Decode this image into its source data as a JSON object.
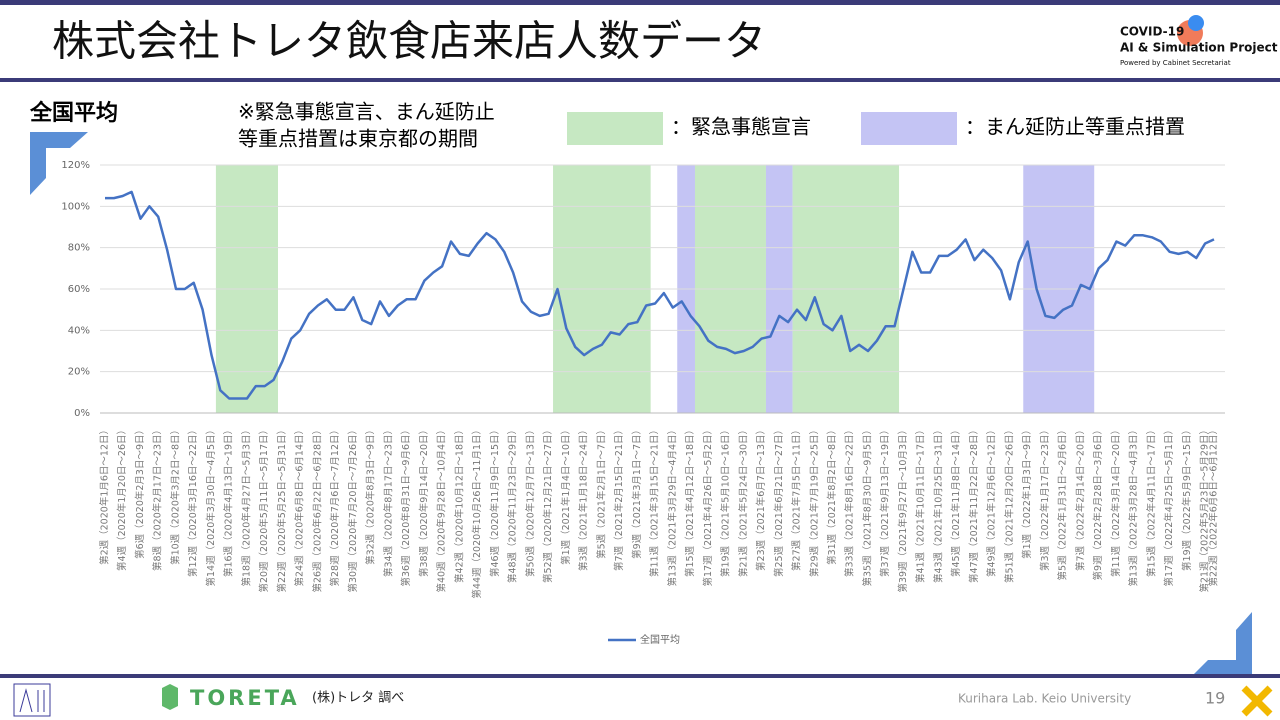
{
  "header": {
    "title": "株式会社トレタ飲食店来店人数データ",
    "logo": {
      "line1": "COVID-19",
      "line2": "AI & Simulation Project",
      "line3": "Powered by Cabinet Secretariat"
    }
  },
  "section_label": "全国平均",
  "note": [
    "※緊急事態宣言、まん延防止",
    "等重点措置は東京都の期間"
  ],
  "chart_data": {
    "type": "line",
    "period_legend": [
      {
        "name": "：緊急事態宣言",
        "color": "#c6e8c2"
      },
      {
        "name": "：まん延防止等重点措置",
        "color": "#c4c4f4"
      }
    ],
    "periods": [
      {
        "kind": 0,
        "start": 13,
        "end": 19
      },
      {
        "kind": 0,
        "start": 51,
        "end": 61
      },
      {
        "kind": 1,
        "start": 65,
        "end": 66
      },
      {
        "kind": 0,
        "start": 67,
        "end": 74
      },
      {
        "kind": 1,
        "start": 75,
        "end": 77
      },
      {
        "kind": 0,
        "start": 78,
        "end": 89
      },
      {
        "kind": 1,
        "start": 104,
        "end": 111
      }
    ],
    "categories": [
      "第2週（2020年1月6日～12日）",
      null,
      "第4週（2020年1月20日～26日）",
      null,
      "第6週（2020年2月3日～9日）",
      null,
      "第8週（2020年2月17日～23日）",
      null,
      "第10週（2020年3月2日～8日）",
      null,
      "第12週（2020年3月16日～22日）",
      null,
      "第14週（2020年3月30日～4月5日）",
      null,
      "第16週（2020年4月13日～19日）",
      null,
      "第18週（2020年4月27日～5月3日）",
      null,
      "第20週（2020年5月11日～5月17日）",
      null,
      "第22週（2020年5月25日～5月31日）",
      null,
      "第24週（2020年6月8日～6月14日）",
      null,
      "第26週（2020年6月22日～6月28日）",
      null,
      "第28週（2020年7月6日～7月12日）",
      null,
      "第30週（2020年7月20日～7月26日）",
      null,
      "第32週（2020年8月3日～9日）",
      null,
      "第34週（2020年8月17日～23日）",
      null,
      "第36週（2020年8月31日～9月6日）",
      null,
      "第38週（2020年9月14日～20日）",
      null,
      "第40週（2020年9月28日～10月4日）",
      null,
      "第42週（2020年10月12日～18日）",
      null,
      "第44週（2020年10月26日～11月1日）",
      null,
      "第46週（2020年11月9日～15日）",
      null,
      "第48週（2020年11月23日～29日）",
      null,
      "第50週（2020年12月7日～13日）",
      null,
      "第52週（2020年12月21日～27日）",
      null,
      "第1週（2021年1月4日～10日）",
      null,
      "第3週（2021年1月18日～24日）",
      null,
      "第5週（2021年2月1日～7日）",
      null,
      "第7週（2021年2月15日～21日）",
      null,
      "第9週（2021年3月1日～7日）",
      null,
      "第11週（2021年3月15日～21日）",
      null,
      "第13週（2021年3月29日～4月4日）",
      null,
      "第15週（2021年4月12日～18日）",
      null,
      "第17週（2021年4月26日～5月2日）",
      null,
      "第19週（2021年5月10日～16日）",
      null,
      "第21週（2021年5月24日～30日）",
      null,
      "第23週（2021年6月7日～13日）",
      null,
      "第25週（2021年6月21日～27日）",
      null,
      "第27週（2021年7月5日～11日）",
      null,
      "第29週（2021年7月19日～25日）",
      null,
      "第31週（2021年8月2日～8日）",
      null,
      "第33週（2021年8月16日～22日）",
      null,
      "第35週（2021年8月30日～9月5日）",
      null,
      "第37週（2021年9月13日～19日）",
      null,
      "第39週（2021年9月27日～10月3日）",
      null,
      "第41週（2021年10月11日～17日）",
      null,
      "第43週（2021年10月25日～31日）",
      null,
      "第45週（2021年11月8日～14日）",
      null,
      "第47週（2021年11月22日～28日）",
      null,
      "第49週（2021年12月6日～12日）",
      null,
      "第51週（2021年12月20日～26日）",
      null,
      "第1週（2022年1月3日～9日）",
      null,
      "第3週（2022年1月17日～23日）",
      null,
      "第5週（2022年1月31日～2月6日）",
      null,
      "第7週（2022年2月14日～20日）",
      null,
      "第9週（2022年2月28日～3月6日）",
      null,
      "第11週（2022年3月14日～20日）",
      null,
      "第13週（2022年3月28日～4月3日）",
      null,
      "第15週（2022年4月11日～17日）",
      null,
      "第17週（2022年4月25日～5月1日）",
      null,
      "第19週（2022年5月9日～15日）",
      null,
      "第21週（2022年5月23日～5月29日）",
      "第22週（2022年6月6日～6月12日）"
    ],
    "series": [
      {
        "name": "全国平均",
        "color": "#4472c4",
        "values": [
          104,
          104,
          105,
          107,
          94,
          100,
          95,
          79,
          60,
          60,
          63,
          50,
          28,
          11,
          7,
          7,
          7,
          13,
          13,
          16,
          25,
          36,
          40,
          48,
          52,
          55,
          50,
          50,
          56,
          45,
          43,
          54,
          47,
          52,
          55,
          55,
          64,
          68,
          71,
          83,
          77,
          76,
          82,
          87,
          84,
          78,
          68,
          54,
          49,
          47,
          48,
          60,
          41,
          32,
          28,
          31,
          33,
          39,
          38,
          43,
          44,
          52,
          53,
          58,
          51,
          54,
          47,
          42,
          35,
          32,
          31,
          29,
          30,
          32,
          36,
          37,
          47,
          44,
          50,
          45,
          56,
          43,
          40,
          47,
          30,
          33,
          30,
          35,
          42,
          42,
          60,
          78,
          68,
          68,
          76,
          76,
          79,
          84,
          74,
          79,
          75,
          69,
          55,
          73,
          83,
          60,
          47,
          46,
          50,
          52,
          62,
          60,
          70,
          74,
          83,
          81,
          86,
          86,
          85,
          83,
          78,
          77,
          78,
          75,
          82,
          84
        ]
      }
    ],
    "ylim": [
      0,
      120
    ],
    "yticks": [
      {
        "value": 0,
        "label": "0%"
      },
      {
        "value": 20,
        "label": "20%"
      },
      {
        "value": 40,
        "label": "40%"
      },
      {
        "value": 60,
        "label": "60%"
      },
      {
        "value": 80,
        "label": "80%"
      },
      {
        "value": 100,
        "label": "100%"
      },
      {
        "value": 120,
        "label": "120%"
      }
    ],
    "grid": true
  },
  "footer": {
    "brand": "TORETA",
    "source": "(株)トレタ 調べ",
    "lab": "Kurihara Lab. Keio University",
    "page": "19"
  }
}
